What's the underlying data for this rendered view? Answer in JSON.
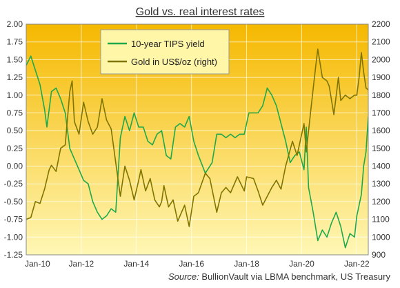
{
  "chart_data": {
    "type": "line",
    "title": "Gold vs. real interest rates",
    "x_ticks": [
      "Jan-10",
      "Jan-12",
      "Jan-14",
      "Jan-16",
      "Jan-18",
      "Jan-20",
      "Jan-22"
    ],
    "x_range": [
      "Jan-10",
      "Jun-22"
    ],
    "y_left": {
      "min": -1.25,
      "max": 2.0,
      "ticks": [
        "2.00",
        "1.75",
        "1.50",
        "1.25",
        "1.00",
        "0.75",
        "0.50",
        "0.25",
        "0.00",
        "-0.25",
        "-0.50",
        "-0.75",
        "-1.00",
        "-1.25"
      ]
    },
    "y_right": {
      "min": 900,
      "max": 2200,
      "ticks": [
        "2200",
        "2100",
        "2000",
        "1900",
        "1800",
        "1700",
        "1600",
        "1500",
        "1400",
        "1300",
        "1200",
        "1100",
        "1000",
        "900"
      ]
    },
    "grid": true,
    "legend_position": "top-left",
    "background_gradient": [
      "#F5B800",
      "#FFF7B5"
    ],
    "series": [
      {
        "name": "10-year TIPS yield",
        "axis": "left",
        "color": "#1DA84C",
        "points": [
          [
            "2010-01",
            1.42
          ],
          [
            "2010-03",
            1.55
          ],
          [
            "2010-05",
            1.35
          ],
          [
            "2010-07",
            1.15
          ],
          [
            "2010-09",
            0.8
          ],
          [
            "2010-10",
            0.55
          ],
          [
            "2010-12",
            1.05
          ],
          [
            "2011-02",
            1.1
          ],
          [
            "2011-04",
            0.95
          ],
          [
            "2011-06",
            0.75
          ],
          [
            "2011-08",
            0.25
          ],
          [
            "2011-10",
            0.1
          ],
          [
            "2011-12",
            -0.05
          ],
          [
            "2012-02",
            -0.2
          ],
          [
            "2012-04",
            -0.25
          ],
          [
            "2012-06",
            -0.5
          ],
          [
            "2012-08",
            -0.65
          ],
          [
            "2012-10",
            -0.75
          ],
          [
            "2012-12",
            -0.7
          ],
          [
            "2013-02",
            -0.6
          ],
          [
            "2013-04",
            -0.65
          ],
          [
            "2013-06",
            0.4
          ],
          [
            "2013-08",
            0.7
          ],
          [
            "2013-10",
            0.5
          ],
          [
            "2013-12",
            0.75
          ],
          [
            "2014-02",
            0.55
          ],
          [
            "2014-04",
            0.55
          ],
          [
            "2014-06",
            0.35
          ],
          [
            "2014-08",
            0.3
          ],
          [
            "2014-10",
            0.45
          ],
          [
            "2014-12",
            0.5
          ],
          [
            "2015-02",
            0.15
          ],
          [
            "2015-04",
            0.1
          ],
          [
            "2015-06",
            0.55
          ],
          [
            "2015-08",
            0.6
          ],
          [
            "2015-10",
            0.55
          ],
          [
            "2015-12",
            0.7
          ],
          [
            "2016-02",
            0.35
          ],
          [
            "2016-04",
            0.15
          ],
          [
            "2016-07",
            -0.1
          ],
          [
            "2016-10",
            0.05
          ],
          [
            "2016-12",
            0.45
          ],
          [
            "2017-02",
            0.45
          ],
          [
            "2017-04",
            0.4
          ],
          [
            "2017-06",
            0.45
          ],
          [
            "2017-08",
            0.4
          ],
          [
            "2017-10",
            0.45
          ],
          [
            "2017-12",
            0.45
          ],
          [
            "2018-02",
            0.75
          ],
          [
            "2018-04",
            0.75
          ],
          [
            "2018-06",
            0.75
          ],
          [
            "2018-08",
            0.85
          ],
          [
            "2018-10",
            1.1
          ],
          [
            "2018-12",
            1.0
          ],
          [
            "2019-02",
            0.85
          ],
          [
            "2019-04",
            0.6
          ],
          [
            "2019-06",
            0.35
          ],
          [
            "2019-08",
            0.05
          ],
          [
            "2019-10",
            0.15
          ],
          [
            "2019-12",
            0.2
          ],
          [
            "2020-02",
            -0.05
          ],
          [
            "2020-03",
            0.55
          ],
          [
            "2020-04",
            -0.3
          ],
          [
            "2020-06",
            -0.65
          ],
          [
            "2020-08",
            -1.05
          ],
          [
            "2020-10",
            -0.9
          ],
          [
            "2020-12",
            -1.0
          ],
          [
            "2021-02",
            -0.8
          ],
          [
            "2021-04",
            -0.65
          ],
          [
            "2021-06",
            -0.85
          ],
          [
            "2021-08",
            -1.15
          ],
          [
            "2021-10",
            -0.95
          ],
          [
            "2021-12",
            -1.0
          ],
          [
            "2022-01",
            -0.7
          ],
          [
            "2022-02",
            -0.55
          ],
          [
            "2022-03",
            -0.4
          ],
          [
            "2022-04",
            0.0
          ],
          [
            "2022-05",
            0.2
          ],
          [
            "2022-06",
            0.7
          ]
        ]
      },
      {
        "name": "Gold in US$/oz (right)",
        "axis": "right",
        "color": "#7F7400",
        "points": [
          [
            "2010-01",
            1100
          ],
          [
            "2010-03",
            1110
          ],
          [
            "2010-05",
            1200
          ],
          [
            "2010-07",
            1190
          ],
          [
            "2010-09",
            1270
          ],
          [
            "2010-11",
            1380
          ],
          [
            "2010-12",
            1405
          ],
          [
            "2011-02",
            1370
          ],
          [
            "2011-04",
            1500
          ],
          [
            "2011-06",
            1520
          ],
          [
            "2011-08",
            1820
          ],
          [
            "2011-09",
            1880
          ],
          [
            "2011-10",
            1650
          ],
          [
            "2011-12",
            1580
          ],
          [
            "2012-02",
            1760
          ],
          [
            "2012-04",
            1650
          ],
          [
            "2012-06",
            1580
          ],
          [
            "2012-08",
            1620
          ],
          [
            "2012-10",
            1780
          ],
          [
            "2012-12",
            1660
          ],
          [
            "2013-02",
            1610
          ],
          [
            "2013-04",
            1420
          ],
          [
            "2013-06",
            1230
          ],
          [
            "2013-08",
            1400
          ],
          [
            "2013-10",
            1320
          ],
          [
            "2013-12",
            1210
          ],
          [
            "2014-02",
            1320
          ],
          [
            "2014-03",
            1380
          ],
          [
            "2014-05",
            1260
          ],
          [
            "2014-07",
            1330
          ],
          [
            "2014-09",
            1210
          ],
          [
            "2014-11",
            1170
          ],
          [
            "2014-12",
            1200
          ],
          [
            "2015-01",
            1290
          ],
          [
            "2015-03",
            1170
          ],
          [
            "2015-05",
            1210
          ],
          [
            "2015-07",
            1090
          ],
          [
            "2015-10",
            1180
          ],
          [
            "2015-12",
            1060
          ],
          [
            "2016-02",
            1230
          ],
          [
            "2016-04",
            1250
          ],
          [
            "2016-07",
            1360
          ],
          [
            "2016-09",
            1330
          ],
          [
            "2016-12",
            1140
          ],
          [
            "2017-02",
            1250
          ],
          [
            "2017-04",
            1280
          ],
          [
            "2017-06",
            1250
          ],
          [
            "2017-09",
            1340
          ],
          [
            "2017-12",
            1260
          ],
          [
            "2018-01",
            1340
          ],
          [
            "2018-04",
            1330
          ],
          [
            "2018-06",
            1260
          ],
          [
            "2018-08",
            1180
          ],
          [
            "2018-10",
            1230
          ],
          [
            "2018-12",
            1280
          ],
          [
            "2019-02",
            1320
          ],
          [
            "2019-04",
            1270
          ],
          [
            "2019-06",
            1400
          ],
          [
            "2019-09",
            1540
          ],
          [
            "2019-11",
            1460
          ],
          [
            "2019-12",
            1520
          ],
          [
            "2020-02",
            1640
          ],
          [
            "2020-03",
            1480
          ],
          [
            "2020-05",
            1720
          ],
          [
            "2020-07",
            1950
          ],
          [
            "2020-08",
            2060
          ],
          [
            "2020-10",
            1900
          ],
          [
            "2020-12",
            1880
          ],
          [
            "2021-01",
            1850
          ],
          [
            "2021-03",
            1690
          ],
          [
            "2021-05",
            1900
          ],
          [
            "2021-06",
            1770
          ],
          [
            "2021-08",
            1800
          ],
          [
            "2021-10",
            1780
          ],
          [
            "2021-12",
            1800
          ],
          [
            "2022-01",
            1800
          ],
          [
            "2022-02",
            1900
          ],
          [
            "2022-03",
            2040
          ],
          [
            "2022-04",
            1930
          ],
          [
            "2022-05",
            1840
          ],
          [
            "2022-06",
            1830
          ]
        ]
      }
    ]
  },
  "footer": {
    "source_label": "Source:",
    "source_text": " BullionVault via LBMA benchmark, US Treasury"
  }
}
